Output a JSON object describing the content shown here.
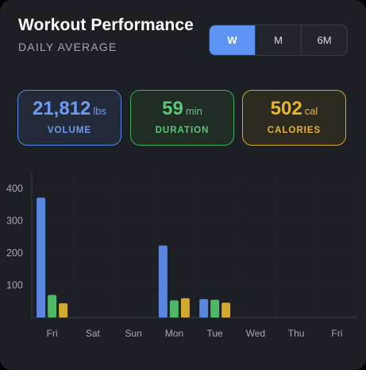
{
  "header": {
    "title": "Workout Performance",
    "subtitle": "DAILY AVERAGE"
  },
  "range_tabs": [
    {
      "label": "W",
      "active": true
    },
    {
      "label": "M",
      "active": false
    },
    {
      "label": "6M",
      "active": false
    }
  ],
  "stats": {
    "volume": {
      "value": "21,812",
      "unit": "lbs",
      "label": "VOLUME"
    },
    "duration": {
      "value": "59",
      "unit": "min",
      "label": "DURATION"
    },
    "calories": {
      "value": "502",
      "unit": "cal",
      "label": "CALORIES"
    }
  },
  "colors": {
    "volume": "#5b86e0",
    "duration": "#4cb868",
    "calories": "#d4a82e",
    "active_tab": "#5d93f2"
  },
  "chart_data": {
    "type": "bar",
    "categories": [
      "Fri",
      "Sat",
      "Sun",
      "Mon",
      "Tue",
      "Wed",
      "Thu",
      "Fri"
    ],
    "series": [
      {
        "key": "volume",
        "values": [
          372,
          0,
          0,
          223,
          57,
          0,
          0,
          0
        ]
      },
      {
        "key": "duration",
        "values": [
          70,
          0,
          0,
          53,
          55,
          0,
          0,
          0
        ]
      },
      {
        "key": "calories",
        "values": [
          44,
          0,
          0,
          60,
          46,
          0,
          0,
          0
        ]
      }
    ],
    "yticks": [
      100,
      200,
      300,
      400
    ],
    "ylim": [
      0,
      400
    ],
    "grid": true
  }
}
